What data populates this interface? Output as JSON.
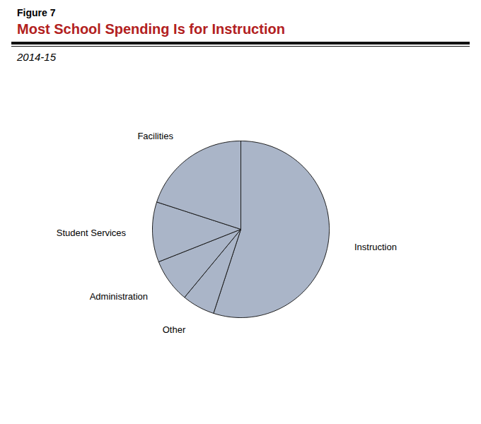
{
  "chart_data": {
    "type": "pie",
    "title": "Most School Spending Is for Instruction",
    "subtitle": "2014-15",
    "annotations": [
      "Figure 7"
    ],
    "categories": [
      "Instruction",
      "Other",
      "Administration",
      "Student Services",
      "Facilities"
    ],
    "values": [
      55,
      6,
      8,
      11,
      20
    ],
    "color": "#aab5c8"
  }
}
